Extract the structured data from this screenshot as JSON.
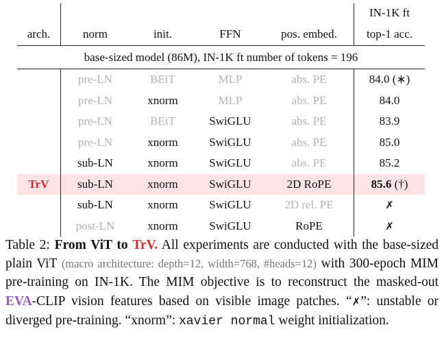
{
  "table": {
    "header": {
      "arch": "arch.",
      "norm": "norm",
      "init": "init.",
      "ffn": "FFN",
      "pos": "pos. embed.",
      "acc_line1": "IN-1K ft",
      "acc_line2": "top-1 acc."
    },
    "subheader": "base-sized model (86M), IN-1K ft number of tokens = 196",
    "rows": [
      {
        "norm": "pre-LN",
        "init": "BEiT",
        "ffn": "MLP",
        "pos": "abs. PE",
        "acc": "84.0",
        "note": "(∗)"
      },
      {
        "norm": "pre-LN",
        "init": "xnorm",
        "ffn": "MLP",
        "pos": "abs. PE",
        "acc": "84.0"
      },
      {
        "norm": "pre-LN",
        "init": "BEiT",
        "ffn": "SwiGLU",
        "pos": "abs. PE",
        "acc": "83.9"
      },
      {
        "norm": "pre-LN",
        "init": "xnorm",
        "ffn": "SwiGLU",
        "pos": "abs. PE",
        "acc": "85.0"
      },
      {
        "norm": "sub-LN",
        "init": "xnorm",
        "ffn": "SwiGLU",
        "pos": "abs. PE",
        "acc": "85.2"
      },
      {
        "arch": "TrV",
        "norm": "sub-LN",
        "init": "xnorm",
        "ffn": "SwiGLU",
        "pos": "2D RoPE",
        "acc": "85.6",
        "note": "(†)"
      },
      {
        "norm": "sub-LN",
        "init": "xnorm",
        "ffn": "SwiGLU",
        "pos": "2D rel. PE",
        "acc": "✗"
      },
      {
        "norm": "post-LN",
        "init": "xnorm",
        "ffn": "SwiGLU",
        "pos": "RoPE",
        "acc": "✗"
      }
    ]
  },
  "caption": {
    "parts": [
      "Table 2:",
      "From ViT to",
      "TrV.",
      "All experiments are conducted with the base-sized plain ViT",
      "(macro architecture: depth=12, width=768, #heads=12)",
      "with 300-epoch MIM pre-training on IN-1K. The MIM objective is to reconstruct the masked-out",
      "EVA",
      "-CLIP vision features based on visible image patches. “",
      "✗",
      "”: unstable or diverged pre-training. “xnorm”:",
      "xavier normal",
      "weight initialization."
    ]
  }
}
